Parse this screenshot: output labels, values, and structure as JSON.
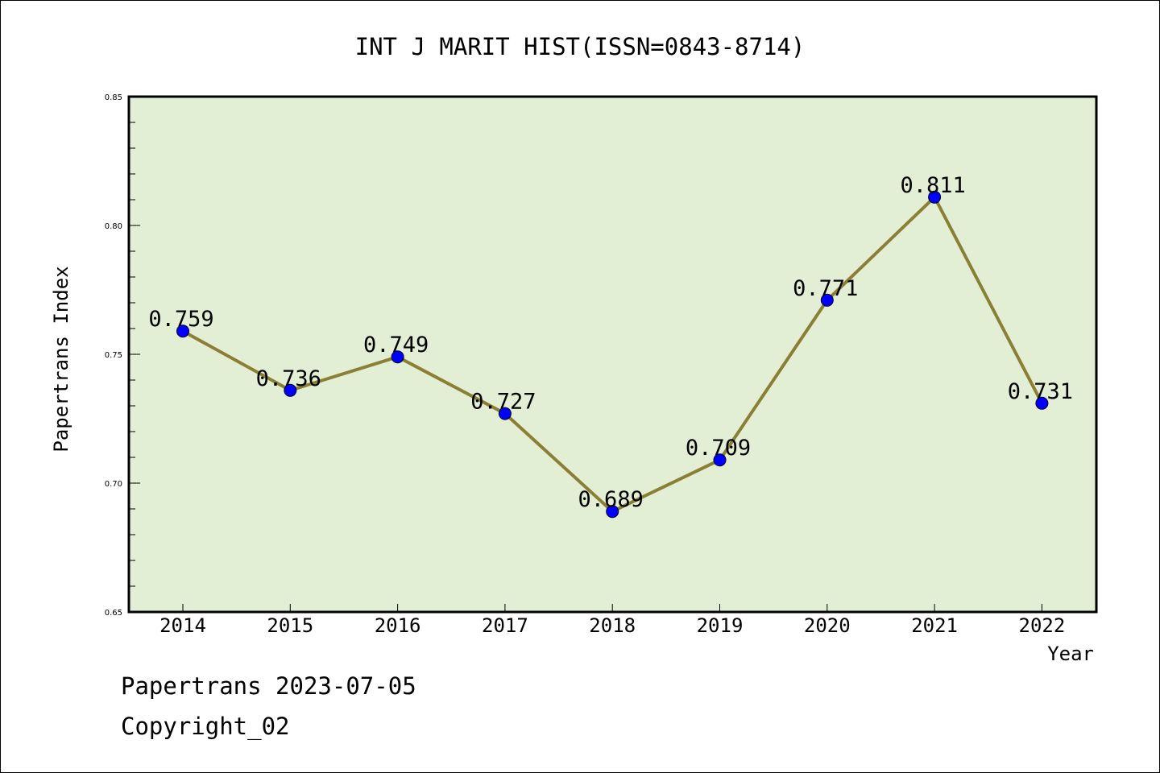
{
  "chart_data": {
    "type": "line",
    "title": "INT J MARIT HIST(ISSN=0843-8714)",
    "xlabel": "Year",
    "ylabel": "Papertrans Index",
    "categories": [
      "2014",
      "2015",
      "2016",
      "2017",
      "2018",
      "2019",
      "2020",
      "2021",
      "2022"
    ],
    "series": [
      {
        "values": [
          0.759,
          0.736,
          0.749,
          0.727,
          0.689,
          0.709,
          0.771,
          0.811,
          0.731
        ],
        "labels": [
          "0.759",
          "0.736",
          "0.749",
          "0.727",
          "0.689",
          "0.709",
          "0.771",
          "0.811",
          "0.731"
        ],
        "line_color": "#8b7f36",
        "marker_color": "#0000ff"
      }
    ],
    "ylim": [
      0.65,
      0.85
    ],
    "yticks": [
      "0.65",
      "0.70",
      "0.75",
      "0.80",
      "0.85"
    ],
    "plot_background": "#e2efd4",
    "grid": false,
    "legend": "none"
  },
  "footer": {
    "line1": "Papertrans 2023-07-05",
    "line2": "Copyright_02"
  }
}
